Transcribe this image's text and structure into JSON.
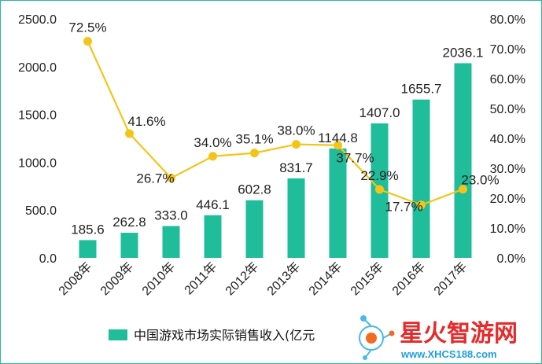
{
  "chart_data": {
    "type": "bar+line",
    "categories": [
      "2008年",
      "2009年",
      "2010年",
      "2011年",
      "2012年",
      "2013年",
      "2014年",
      "2015年",
      "2016年",
      "2017年"
    ],
    "series": [
      {
        "name": "中国游戏市场实际销售收入(亿元",
        "type": "bar",
        "axis": "left",
        "values": [
          185.6,
          262.8,
          333.0,
          446.1,
          602.8,
          831.7,
          1144.8,
          1407.0,
          1655.7,
          2036.1
        ],
        "labels": [
          "185.6",
          "262.8",
          "333.0",
          "446.1",
          "602.8",
          "831.7",
          "1144.8",
          "1407.0",
          "1655.7",
          "2036.1"
        ]
      },
      {
        "type": "line",
        "axis": "right",
        "values": [
          72.5,
          41.6,
          26.7,
          34.0,
          35.1,
          38.0,
          37.7,
          22.9,
          17.7,
          23.0
        ],
        "labels": [
          "72.5%",
          "41.6%",
          "26.7%",
          "34.0%",
          "35.1%",
          "38.0%",
          "37.7%",
          "22.9%",
          "17.7%",
          "23.0%"
        ]
      }
    ],
    "y_left": {
      "min": 0,
      "max": 2500,
      "ticks": [
        "0.0",
        "500.0",
        "1000.0",
        "1500.0",
        "2000.0",
        "2500.0"
      ]
    },
    "y_right": {
      "min": 0,
      "max": 80,
      "ticks": [
        "0.0%",
        "10.0%",
        "20.0%",
        "30.0%",
        "40.0%",
        "50.0%",
        "60.0%",
        "70.0%",
        "80.0%"
      ]
    },
    "legend_position": "bottom",
    "grid": false,
    "colors": {
      "bar": "#20bd9b",
      "line": "#f3c519",
      "frame": "#2bb79c"
    }
  },
  "watermark": {
    "title": "星火智游网",
    "url": "www.XHCS188.com",
    "colors": {
      "title": "#e52b2b",
      "url": "#1f9ee0"
    }
  }
}
